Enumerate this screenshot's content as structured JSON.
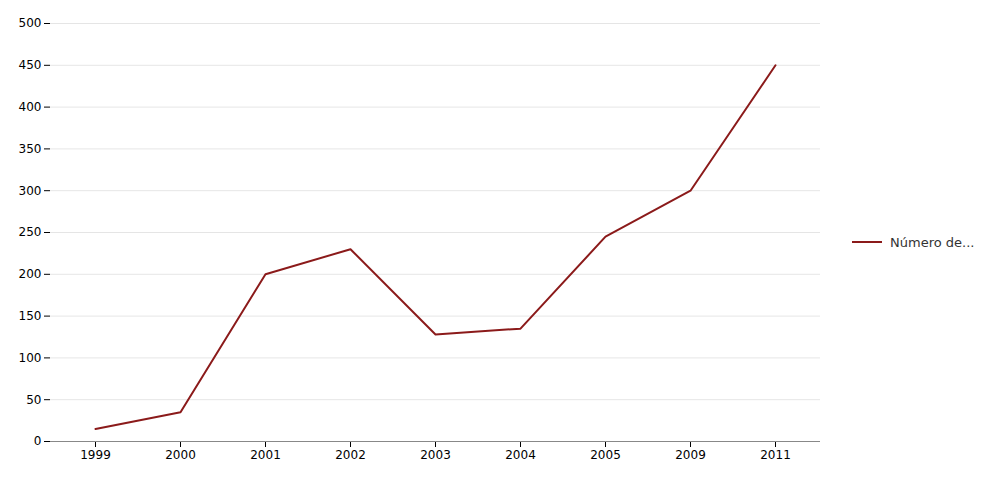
{
  "chart_data": {
    "type": "line",
    "categories": [
      "1999",
      "2000",
      "2001",
      "2002",
      "2003",
      "2004",
      "2005",
      "2009",
      "2011"
    ],
    "series": [
      {
        "name": "Número de...",
        "color": "#8B1A1A",
        "values": [
          15,
          35,
          200,
          230,
          128,
          135,
          245,
          300,
          450
        ]
      }
    ],
    "ylim": [
      0,
      500
    ],
    "yticks": [
      0,
      50,
      100,
      150,
      200,
      250,
      300,
      350,
      400,
      450,
      500
    ],
    "grid": true,
    "legend": "right"
  }
}
